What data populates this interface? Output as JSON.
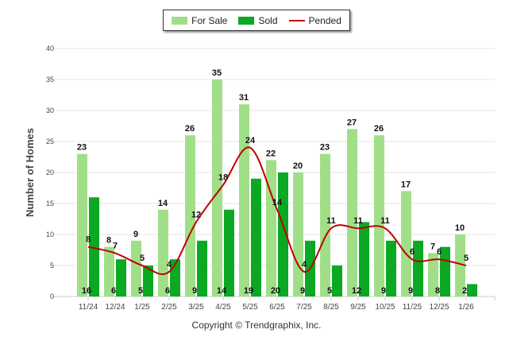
{
  "chart_data": {
    "type": "bar",
    "title": "",
    "xlabel": "",
    "ylabel": "Number of Homes",
    "ylim": [
      0,
      40
    ],
    "yticks": [
      0,
      5,
      10,
      15,
      20,
      25,
      30,
      35,
      40
    ],
    "grid": true,
    "legend_placement": "top-center",
    "categories": [
      "11/24",
      "12/24",
      "1/25",
      "2/25",
      "3/25",
      "4/25",
      "5/25",
      "6/25",
      "7/25",
      "8/25",
      "9/25",
      "10/25",
      "11/25",
      "12/25",
      "1/26"
    ],
    "series": [
      {
        "name": "For Sale",
        "kind": "bar",
        "color": "#a0df88",
        "values": [
          23,
          8,
          9,
          14,
          26,
          35,
          31,
          22,
          20,
          23,
          27,
          26,
          17,
          7,
          10
        ]
      },
      {
        "name": "Sold",
        "kind": "bar",
        "color": "#0aa823",
        "values": [
          16,
          6,
          5,
          6,
          9,
          14,
          19,
          20,
          9,
          5,
          12,
          9,
          9,
          8,
          2
        ]
      },
      {
        "name": "Pended",
        "kind": "line",
        "color": "#c00000",
        "values": [
          8,
          7,
          5,
          4,
          12,
          18,
          24,
          14,
          4,
          11,
          11,
          11,
          6,
          6,
          5
        ]
      }
    ]
  },
  "footer": {
    "copyright": "Copyright © Trendgraphix, Inc."
  }
}
